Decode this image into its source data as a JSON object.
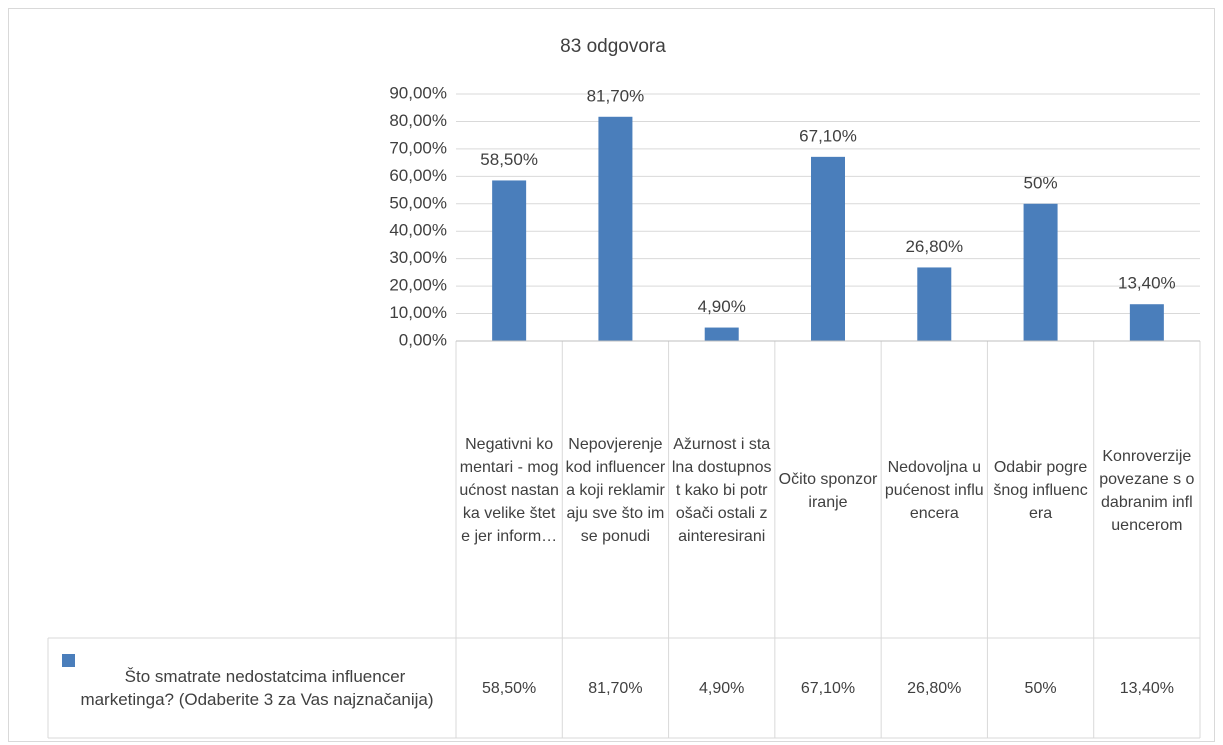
{
  "chart_data": {
    "type": "bar",
    "title": "83 odgovora",
    "categories": [
      "Negativni komentari - mogućnost nastanka velike štete jer inform…",
      "Nepovjerenje kod influencera koji reklamiraju sve što im se ponudi",
      "Ažurnost i stalna dostupnost kako bi potrošači ostali zainteresirani",
      "Očito sponzoriranje",
      "Nedovoljna upućenost influencera",
      "Odabir pogrešnog influencera",
      "Konroverzije povezane s odabranim influencerom"
    ],
    "series": [
      {
        "name": "Što smatrate nedostatcima influencer marketinga? (Odaberite 3 za Vas najznačanija)",
        "color": "#4a7ebb",
        "values": [
          58.5,
          81.7,
          4.9,
          67.1,
          26.8,
          50,
          13.4
        ],
        "value_labels": [
          "58,50%",
          "81,70%",
          "4,90%",
          "67,10%",
          "26,80%",
          "50%",
          "13,40%"
        ]
      }
    ],
    "ylim": [
      0,
      90
    ],
    "yticks": [
      {
        "value": 0,
        "label": "0,00%"
      },
      {
        "value": 10,
        "label": "10,00%"
      },
      {
        "value": 20,
        "label": "20,00%"
      },
      {
        "value": 30,
        "label": "30,00%"
      },
      {
        "value": 40,
        "label": "40,00%"
      },
      {
        "value": 50,
        "label": "50,00%"
      },
      {
        "value": 60,
        "label": "60,00%"
      },
      {
        "value": 70,
        "label": "70,00%"
      },
      {
        "value": 80,
        "label": "80,00%"
      },
      {
        "value": 90,
        "label": "90,00%"
      }
    ],
    "grid": true,
    "data_table": true
  }
}
